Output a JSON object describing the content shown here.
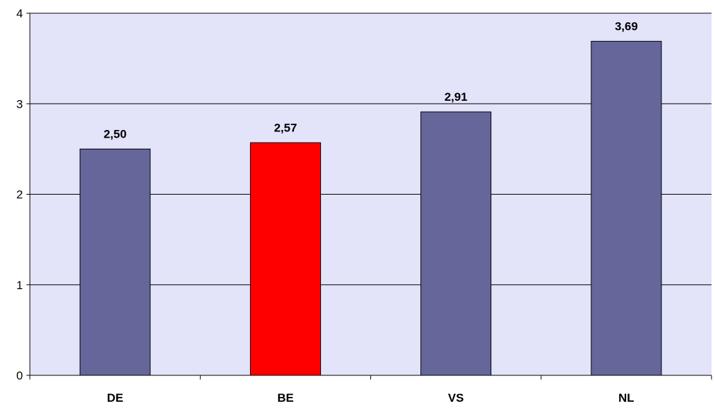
{
  "chart_data": {
    "type": "bar",
    "categories": [
      "DE",
      "BE",
      "VS",
      "NL"
    ],
    "values": [
      2.5,
      2.57,
      2.91,
      3.69
    ],
    "data_labels": [
      "2,50",
      "2,57",
      "2,91",
      "3,69"
    ],
    "ylim": [
      0,
      4
    ],
    "yticks": [
      0,
      1,
      2,
      3,
      4
    ],
    "ytick_labels": [
      "0",
      "1",
      "2",
      "3",
      "4"
    ],
    "grid": true,
    "title": "",
    "xlabel": "",
    "ylabel": "",
    "colors": {
      "plot_background": "#E3E3FA",
      "bar_default": "#656699",
      "bar_highlight": "#FF0000",
      "highlight_category": "BE",
      "gridline": "#000000",
      "bar_border": "#000000"
    }
  }
}
